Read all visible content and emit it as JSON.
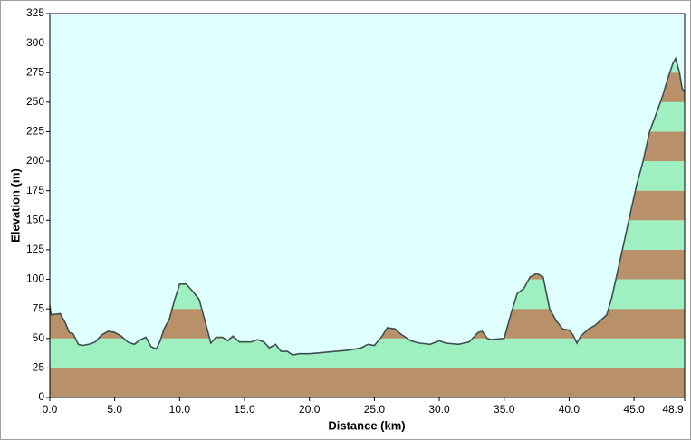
{
  "chart_data": {
    "type": "area",
    "xlabel": "Distance  (km)",
    "ylabel": "Elevation (m)",
    "x": [
      0,
      0.1,
      0.8,
      1.2,
      1.5,
      1.8,
      2.2,
      2.5,
      3.0,
      3.5,
      4.0,
      4.5,
      5.0,
      5.5,
      6.0,
      6.5,
      7.0,
      7.4,
      7.8,
      8.2,
      8.5,
      8.8,
      9.2,
      9.6,
      10.0,
      10.5,
      11.0,
      11.5,
      12.0,
      12.4,
      12.8,
      13.3,
      13.7,
      14.1,
      14.6,
      15.0,
      15.5,
      16.0,
      16.5,
      16.9,
      17.4,
      17.8,
      18.3,
      18.7,
      19.2,
      20,
      21,
      22,
      23,
      24,
      24.5,
      25,
      25.6,
      26,
      26.6,
      27,
      27.8,
      28.5,
      29.3,
      30,
      30.5,
      31.5,
      32.3,
      33,
      33.3,
      33.7,
      34,
      35,
      35.5,
      36,
      36.5,
      37,
      37.5,
      38,
      38.5,
      39,
      39.5,
      40,
      40.3,
      40.6,
      40.9,
      41.5,
      42,
      42.5,
      42.9,
      43.3,
      43.8,
      44.3,
      44.8,
      45.2,
      45.7,
      46.2,
      46.7,
      47.2,
      47.6,
      48.0,
      48.2,
      48.5,
      48.7,
      48.9
    ],
    "values": [
      78,
      70,
      71,
      63,
      55,
      54,
      45,
      44,
      45,
      47,
      53,
      56,
      55,
      52,
      47,
      45,
      49,
      51,
      43,
      41,
      48,
      58,
      66,
      82,
      96,
      96,
      90,
      83,
      63,
      46,
      51,
      51,
      48,
      52,
      47,
      47,
      47,
      49,
      47,
      42,
      45,
      39,
      39,
      36,
      37,
      37,
      38,
      39,
      40,
      42,
      45,
      44,
      52,
      59,
      58,
      54,
      48,
      46,
      45,
      48,
      46,
      45,
      47,
      55,
      56,
      50,
      49,
      50,
      70,
      88,
      92,
      102,
      105,
      102,
      75,
      65,
      58,
      57,
      53,
      46,
      52,
      58,
      61,
      66,
      70,
      85,
      110,
      135,
      160,
      180,
      200,
      225,
      240,
      255,
      270,
      283,
      287,
      275,
      262,
      258
    ],
    "xlim": [
      0,
      48.9
    ],
    "ylim": [
      0,
      325
    ],
    "xticks": [
      {
        "value": 0,
        "label": "0.0"
      },
      {
        "value": 5,
        "label": "5.0"
      },
      {
        "value": 10,
        "label": "10.0"
      },
      {
        "value": 15,
        "label": "15.0"
      },
      {
        "value": 20,
        "label": "20.0"
      },
      {
        "value": 25,
        "label": "25.0"
      },
      {
        "value": 30,
        "label": "30.0"
      },
      {
        "value": 35,
        "label": "35.0"
      },
      {
        "value": 40,
        "label": "40.0"
      },
      {
        "value": 45,
        "label": "45.0"
      },
      48.9
    ],
    "yticks": [
      0,
      25,
      50,
      75,
      100,
      125,
      150,
      175,
      200,
      225,
      250,
      275,
      300,
      325
    ],
    "band_colors": [
      "#b8916a",
      "#9ff0c0"
    ],
    "background": "#e0ffff",
    "line_color": "#3f4f4f"
  }
}
